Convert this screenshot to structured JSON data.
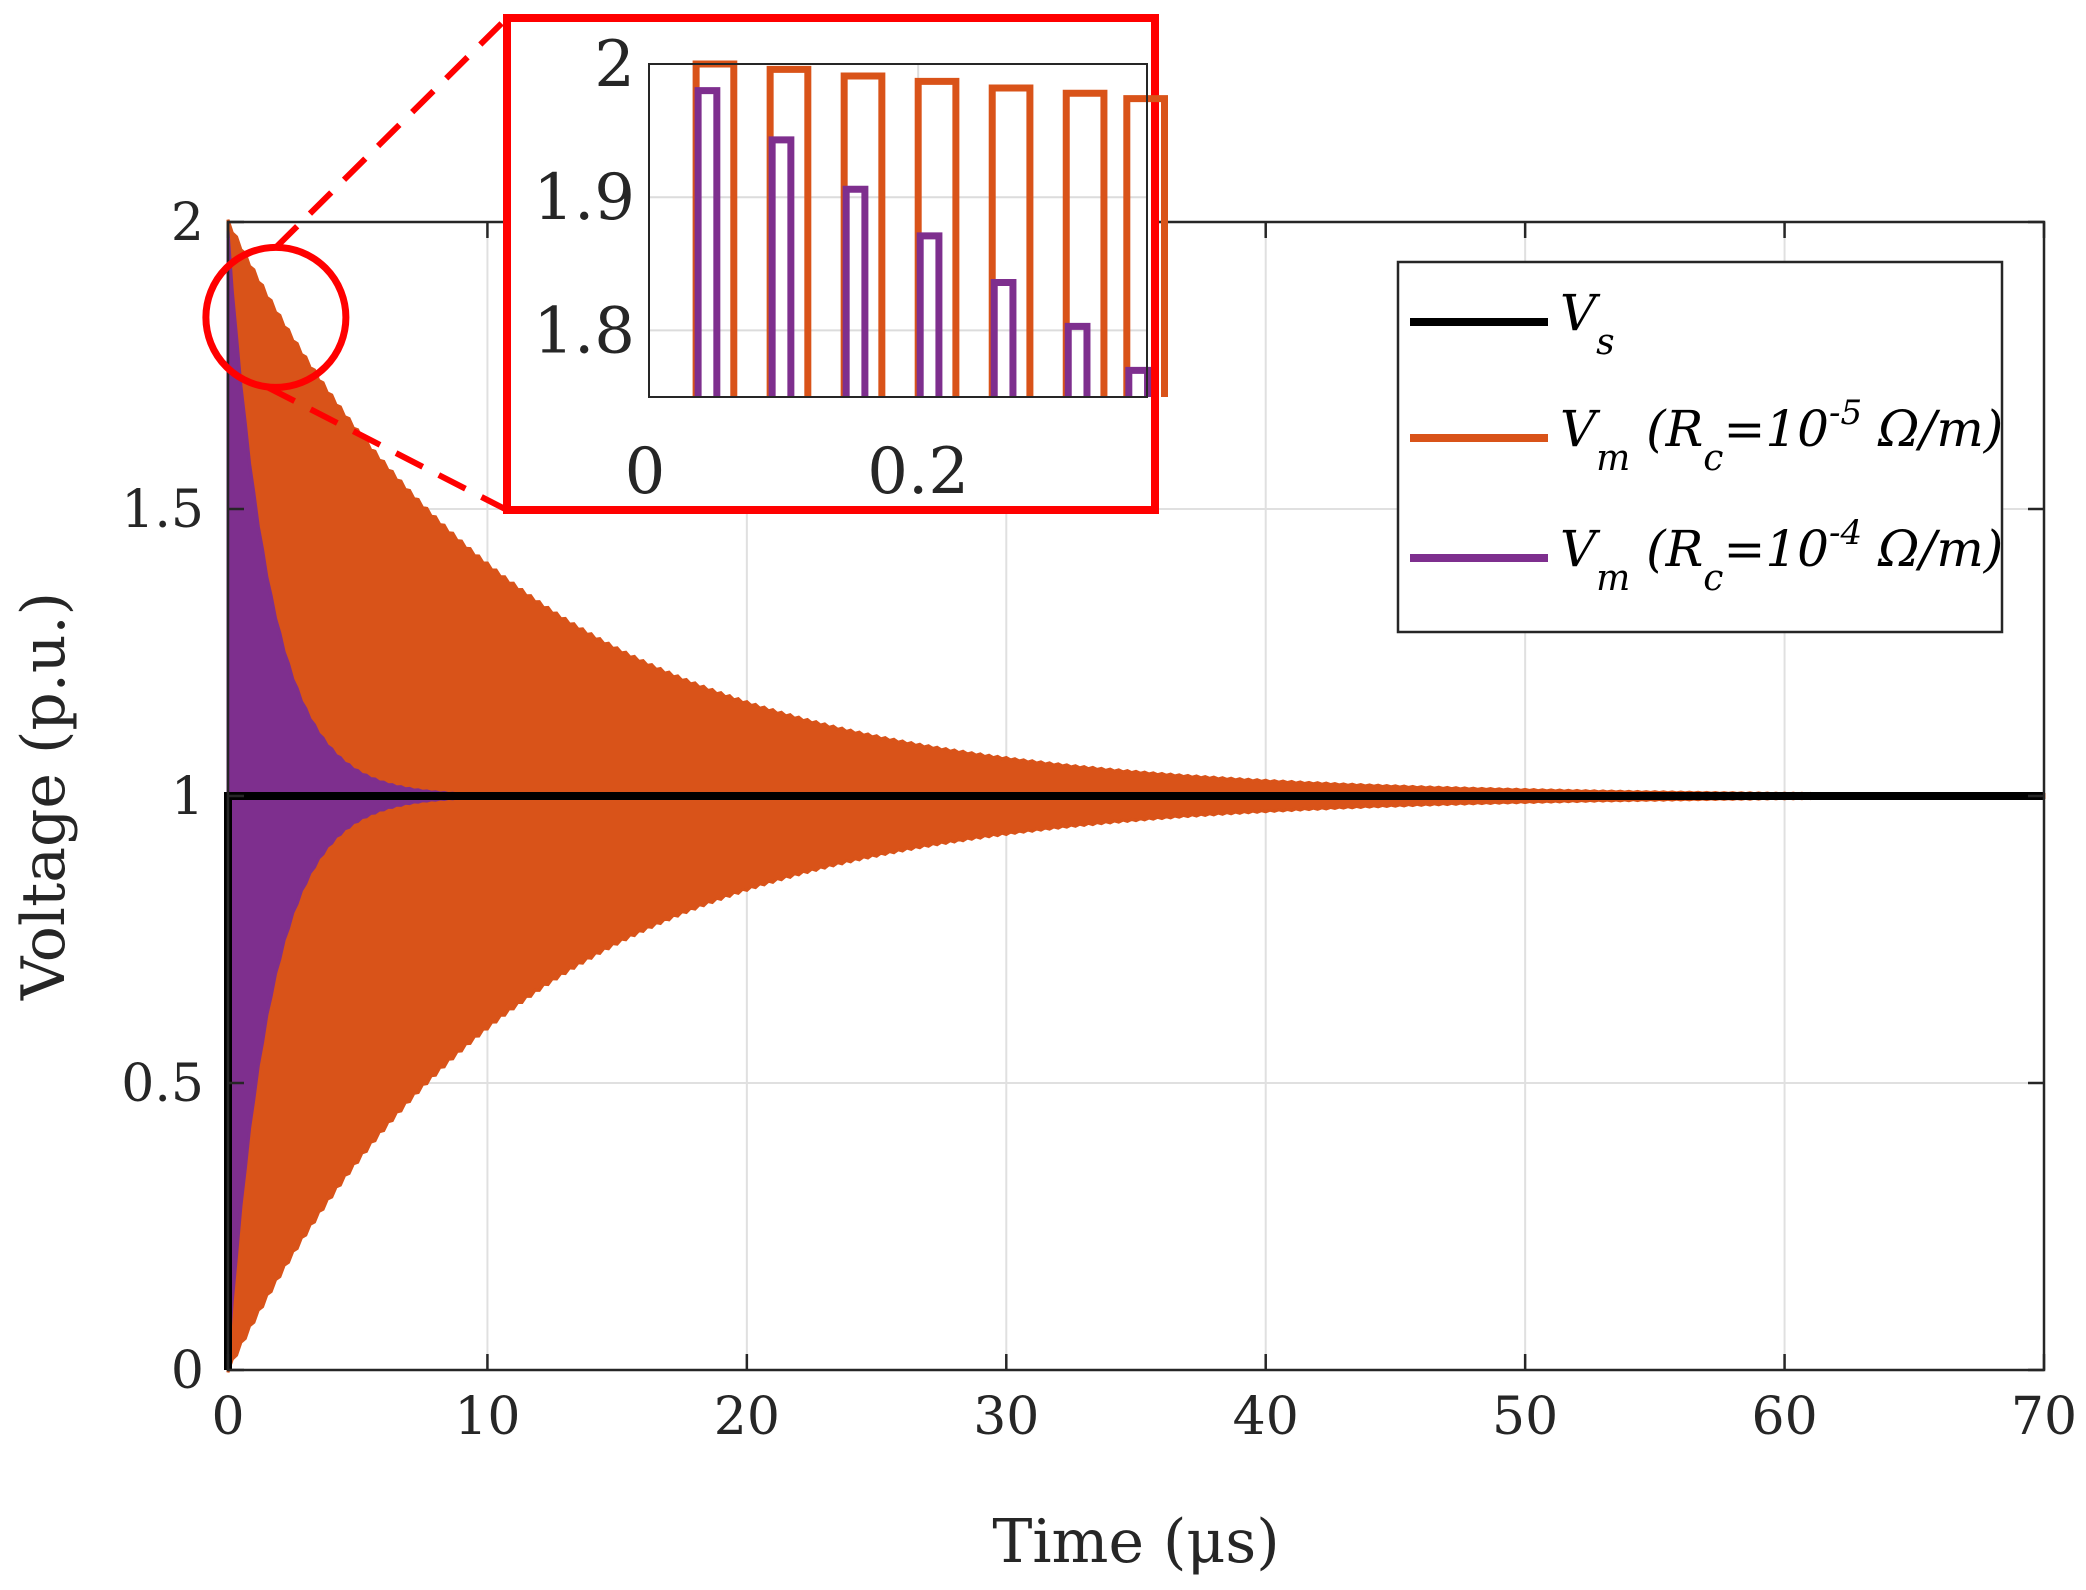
{
  "chart_data": {
    "type": "line",
    "title": "",
    "xlabel": "Time (μs)",
    "ylabel": "Voltage (p.u.)",
    "xlim": [
      0,
      70
    ],
    "ylim": [
      0,
      2
    ],
    "xticks": [
      "0",
      "10",
      "20",
      "30",
      "40",
      "50",
      "60",
      "70"
    ],
    "yticks": [
      "0",
      "0.5",
      "1",
      "1.5",
      "2"
    ],
    "grid": true,
    "legend_position": "top-right",
    "series": [
      {
        "name": "V_s",
        "color": "#000000",
        "description_step": "step from 0 to 1 at t=0",
        "x": [
          0,
          0,
          70
        ],
        "y": [
          0,
          1,
          1
        ]
      },
      {
        "name": "V_m (R_c=10^-5 Ω/m)",
        "color": "#D95319",
        "oscillation_envelope": {
          "peak_initial": 2.0,
          "steady_value": 1.0,
          "time_constant_us": 11.0,
          "x_end": 70
        }
      },
      {
        "name": "V_m (R_c=10^-4 Ω/m)",
        "color": "#7E2F8E",
        "oscillation_envelope": {
          "peak_initial": 1.98,
          "steady_value": 1.0,
          "time_constant_us": 1.6,
          "x_end": 70
        }
      }
    ],
    "legend": [
      {
        "base": "V",
        "sub": "s",
        "rest": "",
        "color": "#000000"
      },
      {
        "base": "V",
        "sub": "m",
        "rest": " (R",
        "sub2": "c",
        "mid": "=10",
        "sup": "-5",
        "tail": " Ω/m)",
        "color": "#D95319"
      },
      {
        "base": "V",
        "sub": "m",
        "rest": " (R",
        "sub2": "c",
        "mid": "=10",
        "sup": "-4",
        "tail": " Ω/m)",
        "color": "#7E2F8E"
      }
    ],
    "inset": {
      "xlim": [
        0,
        0.37
      ],
      "ylim": [
        1.75,
        2.0
      ],
      "xticks": [
        "0",
        "0.2"
      ],
      "yticks": [
        "1.8",
        "1.9",
        "2"
      ],
      "border_color": "#FF0000",
      "zoom_center": [
        0.15,
        1.9
      ],
      "pulses": {
        "orange_peaks": [
          2.0,
          1.996,
          1.991,
          1.987,
          1.982,
          1.978,
          1.974
        ],
        "purple_peaks": [
          1.98,
          1.943,
          1.906,
          1.871,
          1.836,
          1.803,
          1.77
        ],
        "x_starts": [
          0.035,
          0.09,
          0.145,
          0.2,
          0.255,
          0.31,
          0.355
        ]
      }
    }
  }
}
